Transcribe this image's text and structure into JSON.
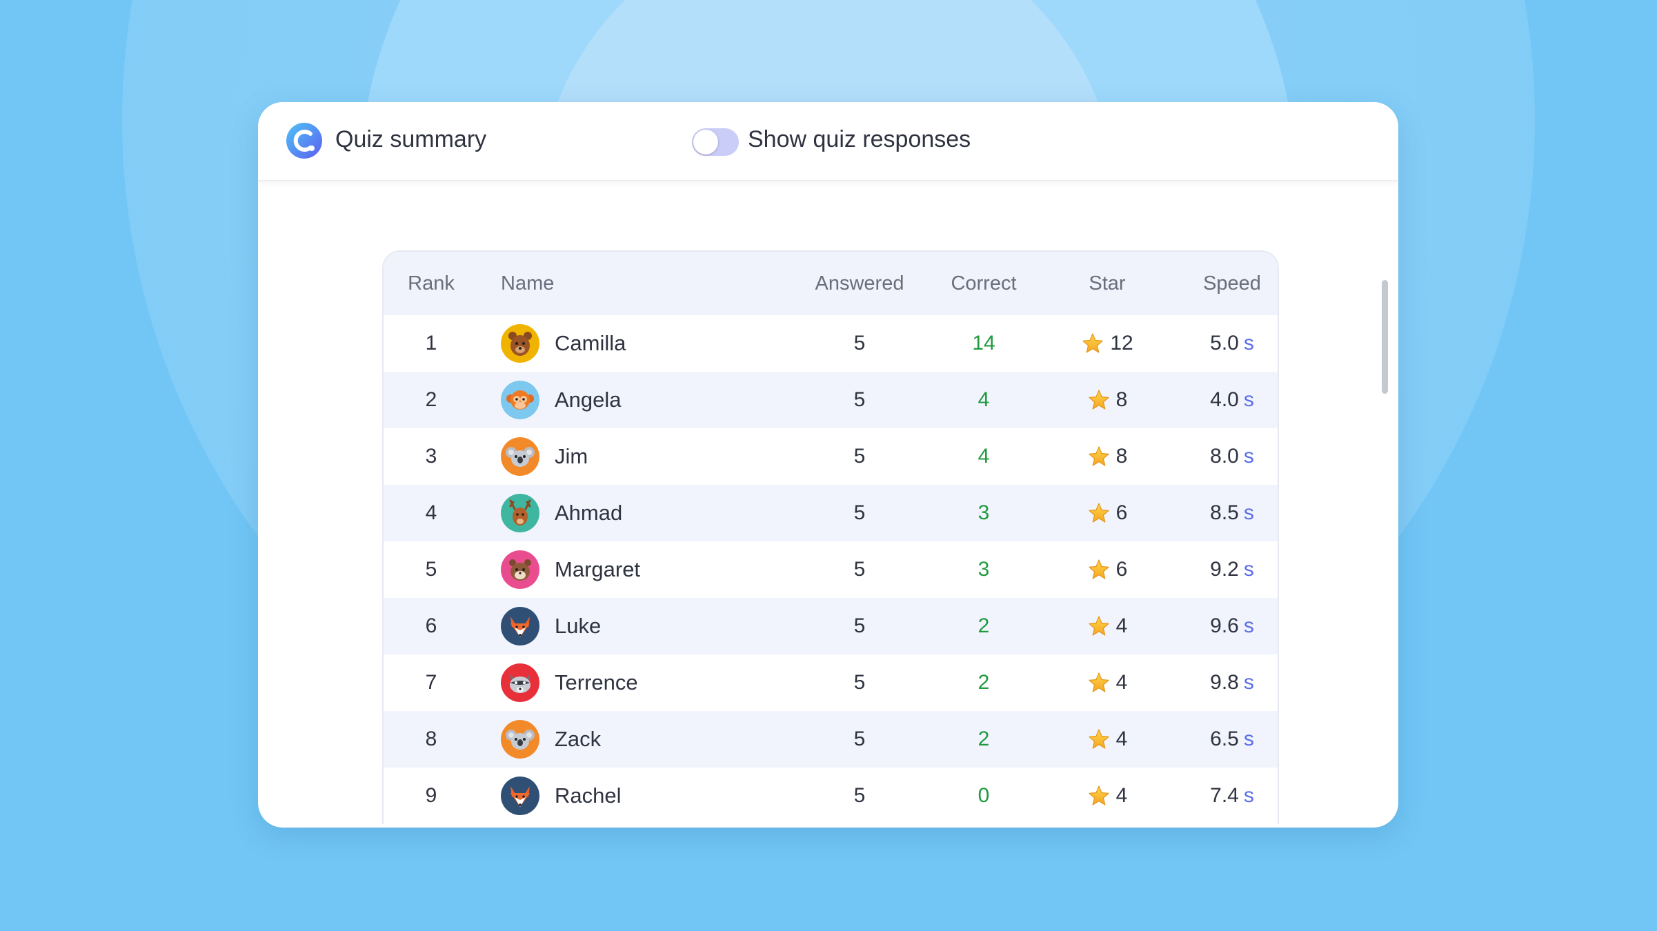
{
  "header": {
    "title": "Quiz summary",
    "toggle_label": "Show quiz responses",
    "toggle_on": false
  },
  "table": {
    "columns": [
      "Rank",
      "Name",
      "Answered",
      "Correct",
      "Star",
      "Speed"
    ],
    "rows": [
      {
        "rank": "1",
        "name": "Camilla",
        "avatar": "bear-icon",
        "answered": "5",
        "correct": "14",
        "star": "12",
        "speed": "5.0",
        "unit": "s"
      },
      {
        "rank": "2",
        "name": "Angela",
        "avatar": "monkey-icon",
        "answered": "5",
        "correct": "4",
        "star": "8",
        "speed": "4.0",
        "unit": "s"
      },
      {
        "rank": "3",
        "name": "Jim",
        "avatar": "koala-icon",
        "answered": "5",
        "correct": "4",
        "star": "8",
        "speed": "8.0",
        "unit": "s"
      },
      {
        "rank": "4",
        "name": "Ahmad",
        "avatar": "deer-icon",
        "answered": "5",
        "correct": "3",
        "star": "6",
        "speed": "8.5",
        "unit": "s"
      },
      {
        "rank": "5",
        "name": "Margaret",
        "avatar": "hamster-icon",
        "answered": "5",
        "correct": "3",
        "star": "6",
        "speed": "9.2",
        "unit": "s"
      },
      {
        "rank": "6",
        "name": "Luke",
        "avatar": "fox-icon",
        "answered": "5",
        "correct": "2",
        "star": "4",
        "speed": "9.6",
        "unit": "s"
      },
      {
        "rank": "7",
        "name": "Terrence",
        "avatar": "raccoon-icon",
        "answered": "5",
        "correct": "2",
        "star": "4",
        "speed": "9.8",
        "unit": "s"
      },
      {
        "rank": "8",
        "name": "Zack",
        "avatar": "koala-icon",
        "answered": "5",
        "correct": "2",
        "star": "4",
        "speed": "6.5",
        "unit": "s"
      },
      {
        "rank": "9",
        "name": "Rachel",
        "avatar": "fox-icon",
        "answered": "5",
        "correct": "0",
        "star": "4",
        "speed": "7.4",
        "unit": "s"
      }
    ]
  },
  "colors": {
    "background": "#71c6f5",
    "correct": "#1f9a3e",
    "speed_unit": "#5a6ee8",
    "toggle": "#c9cdf8"
  }
}
